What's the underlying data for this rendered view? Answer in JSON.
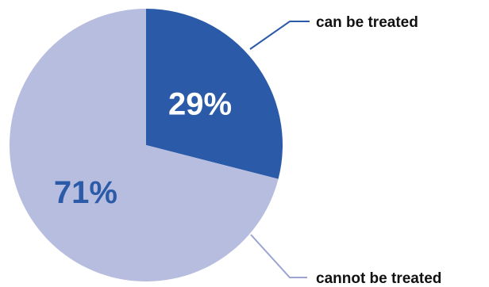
{
  "chart_data": {
    "type": "pie",
    "slices": [
      {
        "label": "can be treated",
        "value": 29,
        "value_label": "29%",
        "color": "#2b5ba8",
        "text_color": "#ffffff"
      },
      {
        "label": "cannot be treated",
        "value": 71,
        "value_label": "71%",
        "color": "#b7bddf",
        "text_color": "#2b5ba8"
      }
    ],
    "start_angle": "12 o'clock",
    "direction": "clockwise",
    "leader_line_color": "#2b5ba8",
    "leader_line_color_2": "#9aa3d2"
  }
}
